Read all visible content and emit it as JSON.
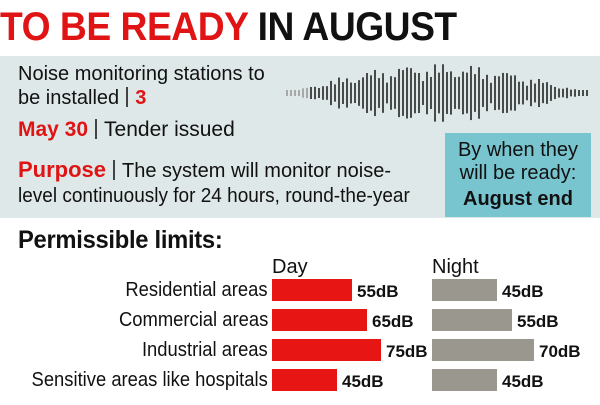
{
  "headline": {
    "part1": "TO BE READY",
    "part2": "IN AUGUST"
  },
  "info": {
    "stations_line1": "Noise monitoring stations to",
    "stations_line2": "be installed",
    "stations_count": "3",
    "date": "May 30",
    "date_text": "Tender issued",
    "purpose_label": "Purpose",
    "purpose_line1": "The system will monitor noise-",
    "purpose_line2": "level continuously for 24 hours, round-the-year"
  },
  "ready": {
    "question_line1": "By when they",
    "question_line2": "will be ready:",
    "answer": "August end"
  },
  "icons": {
    "waveform": "sound-waveform-icon"
  },
  "colors": {
    "day": "#e81515",
    "night": "#9a978f",
    "accent": "#e01414",
    "panel": "#dfe8e8",
    "box": "#79c5cf"
  },
  "chart_data": {
    "type": "bar",
    "title": "Permissible limits:",
    "categories": [
      "Residential areas",
      "Commercial areas",
      "Industrial areas",
      "Sensitive areas like hospitals"
    ],
    "series": [
      {
        "name": "Day",
        "values": [
          55,
          65,
          75,
          45
        ],
        "labels": [
          "55dB",
          "65dB",
          "75dB",
          "45dB"
        ]
      },
      {
        "name": "Night",
        "values": [
          45,
          55,
          70,
          45
        ],
        "labels": [
          "45dB",
          "55dB",
          "70dB",
          "45dB"
        ]
      }
    ],
    "unit": "dB",
    "grid": false
  }
}
